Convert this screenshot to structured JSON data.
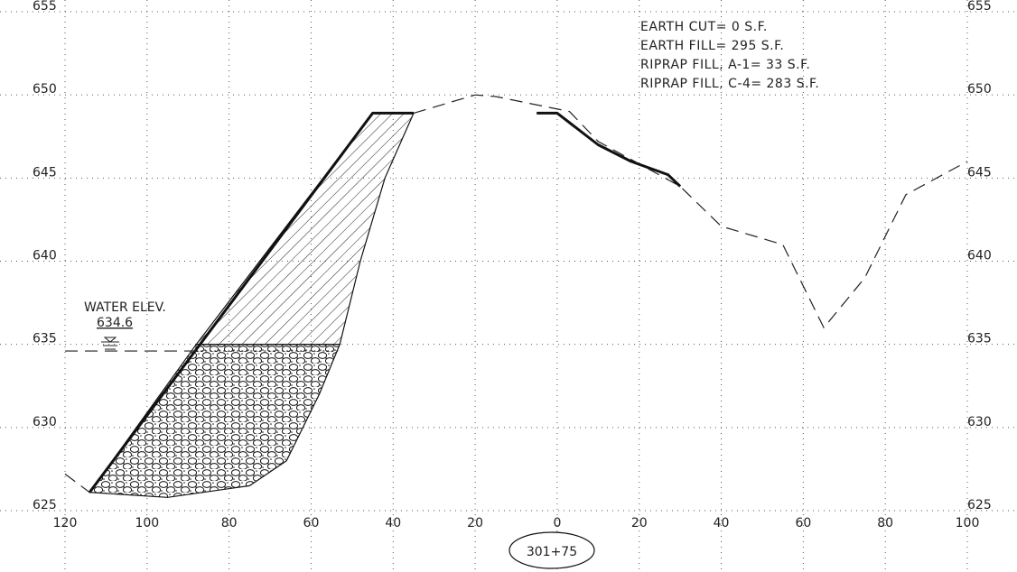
{
  "elevation_labels": [
    "655",
    "650",
    "645",
    "640",
    "635",
    "630",
    "625"
  ],
  "elevation_values": [
    655,
    650,
    645,
    640,
    635,
    630,
    625
  ],
  "offset_labels": [
    "120",
    "100",
    "80",
    "60",
    "40",
    "20",
    "0",
    "20",
    "40",
    "60",
    "80",
    "100"
  ],
  "offset_values": [
    -120,
    -100,
    -80,
    -60,
    -40,
    -20,
    0,
    20,
    40,
    60,
    80,
    100
  ],
  "station": "301+75",
  "quantities": [
    "EARTH  CUT=  0  S.F.",
    "EARTH  FILL=  295  S.F.",
    "RIPRAP  FILL,  A-1=  33  S.F.",
    "RIPRAP  FILL,  C-4=  283  S.F."
  ],
  "water": {
    "label": "WATER  ELEV.",
    "value": "634.6",
    "elevation": 634.6
  },
  "profiles": {
    "existing_ground": [
      [
        -120,
        627.2
      ],
      [
        -114,
        626.1
      ]
    ],
    "existing_ground_upper": [
      [
        -35,
        648.9
      ],
      [
        -20,
        650
      ],
      [
        -15,
        649.9
      ],
      [
        3,
        649.0
      ],
      [
        10,
        647.2
      ],
      [
        30,
        644.5
      ],
      [
        40,
        642.1
      ],
      [
        55,
        641
      ],
      [
        65,
        636
      ],
      [
        75,
        639
      ],
      [
        85,
        644
      ],
      [
        100,
        646
      ]
    ],
    "proposed_slope": [
      [
        -114,
        626.1
      ],
      [
        -45,
        648.9
      ],
      [
        -35,
        648.9
      ]
    ],
    "proposed_right": [
      [
        -5,
        648.9
      ],
      [
        0,
        648.9
      ],
      [
        10,
        647
      ],
      [
        18,
        646
      ],
      [
        27,
        645.2
      ],
      [
        30,
        644.5
      ]
    ],
    "earth_fill_area": [
      [
        -88,
        635
      ],
      [
        -45,
        648.9
      ],
      [
        -35,
        648.9
      ],
      [
        -42,
        645
      ],
      [
        -48,
        640
      ],
      [
        -53,
        635
      ]
    ],
    "riprap_area": [
      [
        -114,
        626.1
      ],
      [
        -88,
        635
      ],
      [
        -53,
        635
      ],
      [
        -58,
        632
      ],
      [
        -66,
        628
      ],
      [
        -75,
        626.5
      ],
      [
        -95,
        625.8
      ]
    ]
  },
  "axes": {
    "x_range": [
      -120,
      100
    ],
    "y_range": [
      625,
      655
    ]
  }
}
